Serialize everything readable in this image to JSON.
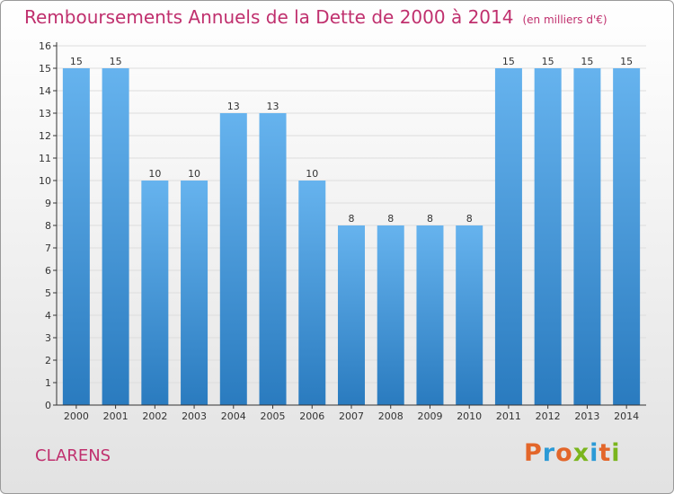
{
  "title": "Remboursements Annuels de la Dette de 2000 à 2014",
  "unit_note": "(en milliers d'€)",
  "town": "CLARENS",
  "logo": "Proxiti",
  "colors": {
    "title": "#c0306e",
    "bar_top": "#66b3ee",
    "bar_bottom": "#2a7bbf",
    "grid": "#dddddd",
    "axis": "#333333"
  },
  "chart_data": {
    "type": "bar",
    "title": "Remboursements Annuels de la Dette de 2000 à 2014",
    "xlabel": "",
    "ylabel": "",
    "ylim": [
      0,
      16
    ],
    "yticks": [
      0,
      1,
      2,
      3,
      4,
      5,
      6,
      7,
      8,
      9,
      10,
      11,
      12,
      13,
      14,
      15,
      16
    ],
    "grid": true,
    "categories": [
      "2000",
      "2001",
      "2002",
      "2003",
      "2004",
      "2005",
      "2006",
      "2007",
      "2008",
      "2009",
      "2010",
      "2011",
      "2012",
      "2013",
      "2014"
    ],
    "values": [
      15,
      15,
      10,
      10,
      13,
      13,
      10,
      8,
      8,
      8,
      8,
      15,
      15,
      15,
      15
    ],
    "data_labels": [
      "15",
      "15",
      "10",
      "10",
      "13",
      "13",
      "10",
      "8",
      "8",
      "8",
      "8",
      "15",
      "15",
      "15",
      "15"
    ]
  }
}
